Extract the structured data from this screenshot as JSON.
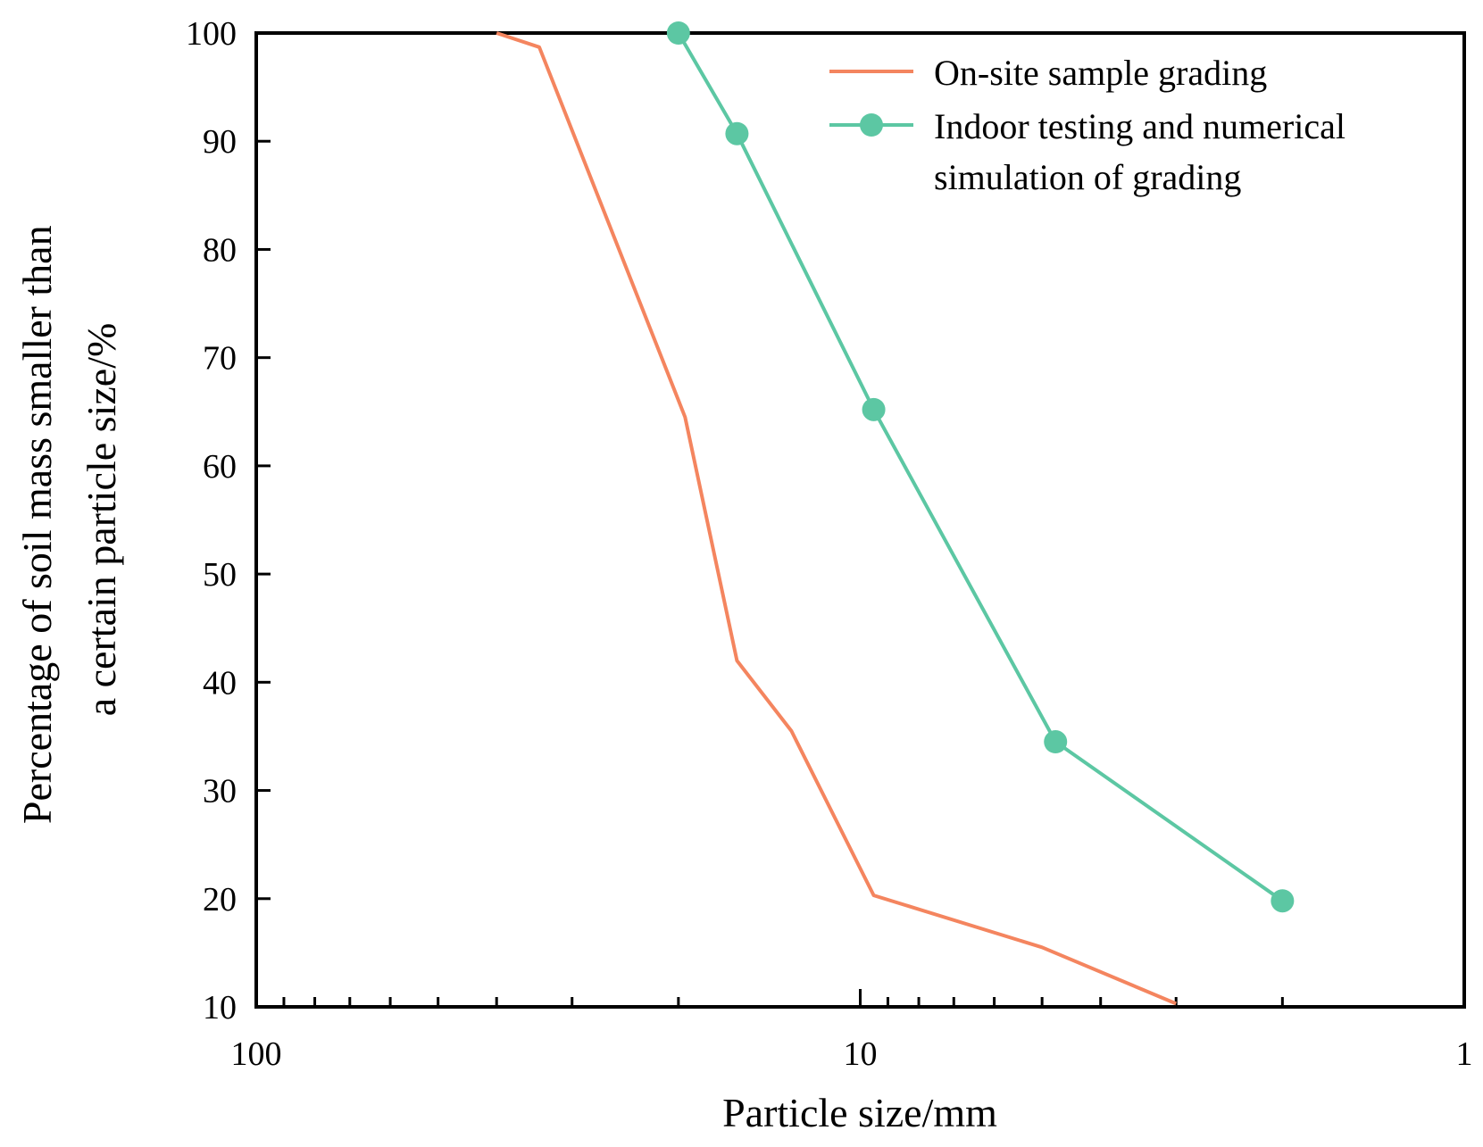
{
  "chart_data": {
    "type": "line",
    "x_scale": "log",
    "x_reversed": true,
    "xlim": [
      100,
      1
    ],
    "ylim": [
      10,
      100
    ],
    "xlabel": "Particle size/mm",
    "ylabel_lines": [
      "Percentage of soil mass smaller than",
      "a certain particle size/%"
    ],
    "x_ticks": [
      {
        "value": 100,
        "label": "100"
      },
      {
        "value": 10,
        "label": "10"
      },
      {
        "value": 1,
        "label": "1"
      }
    ],
    "y_ticks": [
      {
        "value": 100,
        "label": "100"
      },
      {
        "value": 90,
        "label": "90"
      },
      {
        "value": 80,
        "label": "80"
      },
      {
        "value": 70,
        "label": "70"
      },
      {
        "value": 60,
        "label": "60"
      },
      {
        "value": 50,
        "label": "50"
      },
      {
        "value": 40,
        "label": "40"
      },
      {
        "value": 30,
        "label": "30"
      },
      {
        "value": 20,
        "label": "20"
      },
      {
        "value": 10,
        "label": "10"
      }
    ],
    "legend_position": "top-right",
    "series": [
      {
        "name": "On-site sample grading",
        "color": "#f4855f",
        "markers": false,
        "points": [
          {
            "x": 40,
            "y": 100
          },
          {
            "x": 34,
            "y": 98.7
          },
          {
            "x": 19.5,
            "y": 64.5
          },
          {
            "x": 16,
            "y": 42
          },
          {
            "x": 13,
            "y": 35.5
          },
          {
            "x": 9.5,
            "y": 20.3
          },
          {
            "x": 5,
            "y": 15.5
          },
          {
            "x": 3,
            "y": 10.3
          }
        ]
      },
      {
        "name": "Indoor testing and numerical simulation of grading",
        "legend_lines": [
          "Indoor testing and numerical",
          "simulation of grading"
        ],
        "color": "#5cc7a3",
        "markers": true,
        "points": [
          {
            "x": 20,
            "y": 100
          },
          {
            "x": 16,
            "y": 90.7
          },
          {
            "x": 9.5,
            "y": 65.2
          },
          {
            "x": 4.75,
            "y": 34.5
          },
          {
            "x": 2,
            "y": 19.8
          }
        ]
      }
    ]
  }
}
